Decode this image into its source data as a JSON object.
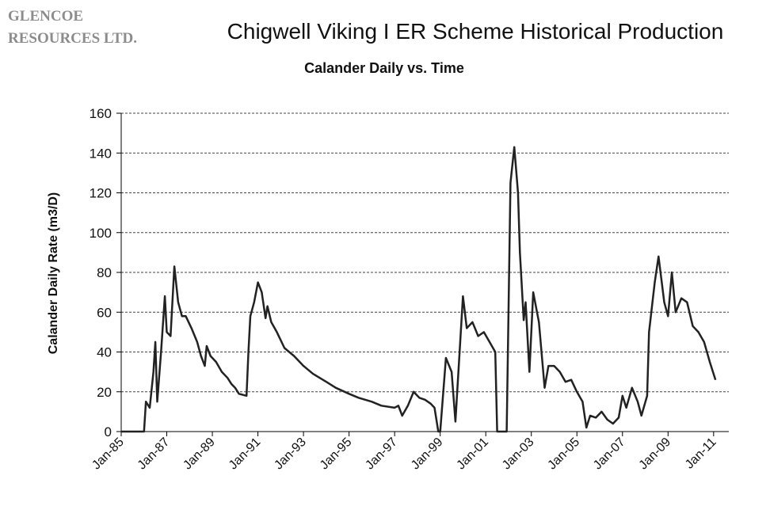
{
  "logo": [
    "GLENCOE",
    "RESOURCES LTD."
  ],
  "chart_data": {
    "type": "line",
    "title": "Chigwell Viking I ER Scheme Historical Production",
    "subtitle": "Calander Daily vs. Time",
    "y_label": "Calander Daily Rate (m3/D)",
    "xlim": [
      "1985-01",
      "2011-09"
    ],
    "xticks": [
      {
        "value": "1985-01",
        "label": "Jan-85"
      },
      {
        "value": "1987-01",
        "label": "Jan-87"
      },
      {
        "value": "1989-01",
        "label": "Jan-89"
      },
      {
        "value": "1991-01",
        "label": "Jan-91"
      },
      {
        "value": "1993-01",
        "label": "Jan-93"
      },
      {
        "value": "1995-01",
        "label": "Jan-95"
      },
      {
        "value": "1997-01",
        "label": "Jan-97"
      },
      {
        "value": "1999-01",
        "label": "Jan-99"
      },
      {
        "value": "2001-01",
        "label": "Jan-01"
      },
      {
        "value": "2003-01",
        "label": "Jan-03"
      },
      {
        "value": "2005-01",
        "label": "Jan-05"
      },
      {
        "value": "2007-01",
        "label": "Jan-07"
      },
      {
        "value": "2009-01",
        "label": "Jan-09"
      },
      {
        "value": "2011-01",
        "label": "Jan-11"
      }
    ],
    "ylim": [
      0,
      160
    ],
    "yticks": [
      0,
      20,
      40,
      60,
      80,
      100,
      120,
      140,
      160
    ],
    "grid": true,
    "color": "#222222",
    "x": [
      "1985-01",
      "1986-01",
      "1986-02",
      "1986-04",
      "1986-06",
      "1986-07",
      "1986-08",
      "1986-10",
      "1986-12",
      "1987-01",
      "1987-03",
      "1987-05",
      "1987-07",
      "1987-09",
      "1987-11",
      "1988-02",
      "1988-05",
      "1988-07",
      "1988-09",
      "1988-10",
      "1988-12",
      "1989-03",
      "1989-06",
      "1989-09",
      "1989-11",
      "1990-01",
      "1990-03",
      "1990-07",
      "1990-08",
      "1990-09",
      "1990-11",
      "1991-01",
      "1991-03",
      "1991-05",
      "1991-06",
      "1991-08",
      "1991-11",
      "1992-03",
      "1992-08",
      "1993-01",
      "1993-06",
      "1994-01",
      "1994-06",
      "1995-01",
      "1995-06",
      "1996-01",
      "1996-06",
      "1997-01",
      "1997-03",
      "1997-05",
      "1997-08",
      "1997-11",
      "1998-02",
      "1998-05",
      "1998-08",
      "1998-10",
      "1998-12",
      "1999-01",
      "1999-04",
      "1999-07",
      "1999-09",
      "2000-01",
      "2000-03",
      "2000-06",
      "2000-09",
      "2000-12",
      "2001-03",
      "2001-06",
      "2001-07",
      "2001-12",
      "2002-02",
      "2002-04",
      "2002-06",
      "2002-07",
      "2002-09",
      "2002-10",
      "2002-12",
      "2003-02",
      "2003-05",
      "2003-08",
      "2003-10",
      "2004-01",
      "2004-04",
      "2004-07",
      "2004-10",
      "2005-01",
      "2005-04",
      "2005-06",
      "2005-08",
      "2005-11",
      "2006-02",
      "2006-05",
      "2006-08",
      "2006-11",
      "2007-01",
      "2007-03",
      "2007-06",
      "2007-09",
      "2007-11",
      "2008-02",
      "2008-03",
      "2008-06",
      "2008-08",
      "2008-11",
      "2009-01",
      "2009-03",
      "2009-05",
      "2009-08",
      "2009-11",
      "2010-02",
      "2010-05",
      "2010-08",
      "2010-11",
      "2011-02"
    ],
    "values": [
      0,
      0,
      15,
      12,
      30,
      45,
      15,
      40,
      68,
      50,
      48,
      83,
      65,
      58,
      58,
      52,
      45,
      38,
      33,
      43,
      38,
      35,
      30,
      27,
      24,
      22,
      19,
      18,
      40,
      58,
      65,
      75,
      70,
      57,
      63,
      55,
      50,
      42,
      38,
      33,
      29,
      25,
      22,
      19,
      17,
      15,
      13,
      12,
      13,
      8,
      13,
      20,
      17,
      16,
      14,
      12,
      0,
      0,
      37,
      30,
      5,
      68,
      52,
      55,
      48,
      50,
      45,
      40,
      0,
      0,
      125,
      143,
      120,
      90,
      56,
      65,
      30,
      70,
      55,
      22,
      33,
      33,
      30,
      25,
      26,
      20,
      15,
      2,
      8,
      7,
      10,
      6,
      4,
      7,
      18,
      12,
      22,
      15,
      8,
      18,
      50,
      75,
      88,
      65,
      58,
      80,
      60,
      67,
      65,
      53,
      50,
      45,
      35,
      26
    ]
  }
}
